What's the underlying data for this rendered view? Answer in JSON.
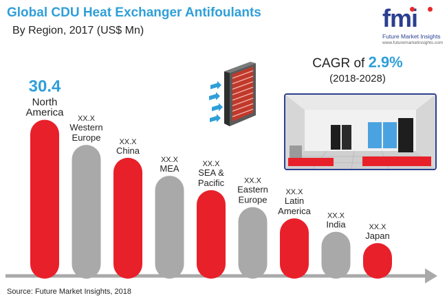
{
  "header": {
    "title": "Global CDU Heat Exchanger Antifoulants",
    "subtitle": "By  Region, 2017 (US$ Mn)"
  },
  "logo": {
    "mark": "fmi",
    "name": "Future Market Insights",
    "url": "www.futuremarketinsights.com"
  },
  "cagr": {
    "prefix": "CAGR of ",
    "value": "2.9%",
    "period": "(2018-2028)"
  },
  "source": "Source: Future Market Insights, 2018",
  "colors": {
    "red": "#e8202a",
    "grey": "#a9a9a9",
    "accent": "#2f9fd8",
    "navy": "#2a3f8f"
  },
  "chart_data": {
    "type": "bar",
    "title": "Global CDU Heat Exchanger Antifoulants",
    "subtitle": "By  Region, 2017 (US$ Mn)",
    "categories": [
      "North America",
      "Western Europe",
      "China",
      "MEA",
      "SEA & Pacific",
      "Eastern Europe",
      "Latin America",
      "India",
      "Japan"
    ],
    "label_lines": [
      [
        "North",
        "America"
      ],
      [
        "Western",
        "Europe"
      ],
      [
        "China"
      ],
      [
        "MEA"
      ],
      [
        "SEA &",
        "Pacific"
      ],
      [
        "Eastern",
        "Europe"
      ],
      [
        "Latin",
        "America"
      ],
      [
        "India"
      ],
      [
        "Japan"
      ]
    ],
    "value_labels": [
      "30.4",
      "XX.X",
      "XX.X",
      "XX.X",
      "XX.X",
      "XX.X",
      "XX.X",
      "XX.X",
      "XX.X"
    ],
    "values": [
      30.4,
      25.5,
      23.0,
      19.5,
      16.7,
      13.4,
      11.2,
      8.6,
      6.4
    ],
    "bar_colors": [
      "red",
      "grey",
      "red",
      "grey",
      "red",
      "grey",
      "red",
      "grey",
      "red"
    ],
    "xlabel": "",
    "ylabel": "",
    "ylim": [
      0,
      31
    ],
    "grid": false,
    "legend": "none"
  }
}
